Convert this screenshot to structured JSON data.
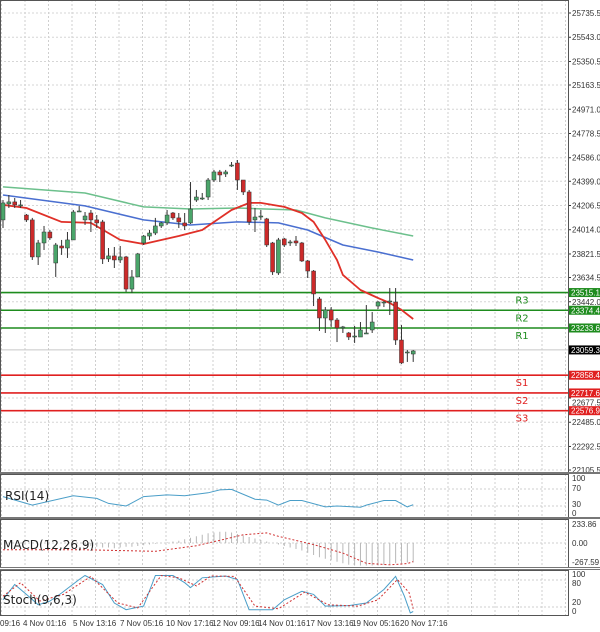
{
  "price_axis": {
    "ticks": [
      "25735.5",
      "25543.0",
      "25350.5",
      "25163.5",
      "24971.0",
      "24778.5",
      "24586.0",
      "24399.0",
      "24206.5",
      "24014.0",
      "23821.5",
      "23634.5",
      "23442.0",
      "22677.5",
      "22485.0",
      "22292.5",
      "22105.5"
    ],
    "current_price": "23059.3"
  },
  "levels": [
    {
      "label": "R3",
      "value": "23515.1",
      "color": "#1e8c1e"
    },
    {
      "label": "R2",
      "value": "23374.4",
      "color": "#1e8c1e"
    },
    {
      "label": "R1",
      "value": "23233.6",
      "color": "#1e8c1e"
    },
    {
      "label": "S1",
      "value": "22858.4",
      "color": "#e02020"
    },
    {
      "label": "S2",
      "value": "22717.6",
      "color": "#e02020"
    },
    {
      "label": "S3",
      "value": "22576.9",
      "color": "#e02020"
    }
  ],
  "colors": {
    "bull": "#4aa56a",
    "bear": "#cc2a2a",
    "ma_fast": "#e03028",
    "ma_mid": "#4a6fd0",
    "ma_slow": "#6cc08c",
    "indicator_line": "#4a9ec8",
    "signal": "#d03030"
  },
  "time_axis": [
    "09:16",
    "4 Nov 01:16",
    "5 Nov 13:16",
    "7 Nov 05:16",
    "10 Nov 17:16",
    "12 Nov 09:16",
    "14 Nov 01:16",
    "17 Nov 13:16",
    "19 Nov 05:16",
    "20 Nov 17:16"
  ],
  "chart_data": [
    {
      "type": "candlestick",
      "columns": [
        "open",
        "high",
        "low",
        "close"
      ],
      "candles": [
        [
          24092,
          24250,
          24028,
          24227
        ],
        [
          24219,
          24290,
          24187,
          24235
        ],
        [
          24235,
          24266,
          24187,
          24211
        ],
        [
          24211,
          24250,
          24187,
          24211
        ],
        [
          24131,
          24139,
          24076,
          24092
        ],
        [
          24092,
          24108,
          23774,
          23798
        ],
        [
          23798,
          23933,
          23734,
          23909
        ],
        [
          23909,
          24044,
          23853,
          23996
        ],
        [
          23996,
          24012,
          23933,
          23949
        ],
        [
          23750,
          23909,
          23639,
          23893
        ],
        [
          23885,
          23933,
          23814,
          23869
        ],
        [
          23869,
          23996,
          23790,
          23933
        ],
        [
          23933,
          24171,
          23933,
          24155
        ],
        [
          24163,
          24203,
          24155,
          24163
        ],
        [
          24092,
          24155,
          24052,
          24123
        ],
        [
          24147,
          24171,
          23996,
          24092
        ],
        [
          24092,
          24131,
          24028,
          24068
        ],
        [
          24076,
          24092,
          23742,
          23782
        ],
        [
          23782,
          23869,
          23758,
          23806
        ],
        [
          23806,
          23877,
          23710,
          23774
        ],
        [
          23774,
          23885,
          23750,
          23798
        ],
        [
          23798,
          23806,
          23520,
          23543
        ],
        [
          23543,
          23694,
          23512,
          23639
        ],
        [
          23639,
          23830,
          23639,
          23822
        ],
        [
          23909,
          23972,
          23893,
          23964
        ],
        [
          23964,
          24012,
          23933,
          23988
        ],
        [
          23988,
          24108,
          23972,
          24044
        ],
        [
          24044,
          24076,
          24028,
          24068
        ],
        [
          24068,
          24171,
          24052,
          24131
        ],
        [
          24147,
          24155,
          24092,
          24108
        ],
        [
          24108,
          24147,
          24028,
          24076
        ],
        [
          24068,
          24147,
          24012,
          24044
        ],
        [
          24068,
          24393,
          24060,
          24179
        ],
        [
          24250,
          24330,
          24235,
          24274
        ],
        [
          24258,
          24306,
          24250,
          24266
        ],
        [
          24274,
          24425,
          24250,
          24409
        ],
        [
          24409,
          24489,
          24393,
          24473
        ],
        [
          24473,
          24489,
          24393,
          24449
        ],
        [
          24457,
          24489,
          24433,
          24473
        ],
        [
          24528,
          24552,
          24513,
          24528
        ],
        [
          24544,
          24568,
          24330,
          24409
        ],
        [
          24409,
          24409,
          24290,
          24314
        ],
        [
          24314,
          24330,
          24052,
          24076
        ],
        [
          24092,
          24187,
          23996,
          24115
        ],
        [
          24123,
          24171,
          24092,
          24123
        ],
        [
          24100,
          24108,
          23877,
          23893
        ],
        [
          23909,
          23917,
          23655,
          23679
        ],
        [
          23671,
          23949,
          23655,
          23933
        ],
        [
          23941,
          23949,
          23877,
          23893
        ],
        [
          23917,
          23933,
          23885,
          23917
        ],
        [
          23925,
          23964,
          23885,
          23909
        ],
        [
          23909,
          23917,
          23758,
          23766
        ],
        [
          23766,
          23774,
          23631,
          23686
        ],
        [
          23686,
          23694,
          23408,
          23504
        ],
        [
          23464,
          23480,
          23210,
          23313
        ],
        [
          23313,
          23400,
          23194,
          23377
        ],
        [
          23377,
          23400,
          23242,
          23297
        ],
        [
          23297,
          23313,
          23122,
          23234
        ],
        [
          23242,
          23250,
          23194,
          23242
        ],
        [
          23194,
          23202,
          23138,
          23162
        ],
        [
          23170,
          23250,
          23115,
          23170
        ],
        [
          23162,
          23281,
          23162,
          23218
        ],
        [
          23194,
          23416,
          23194,
          23194
        ],
        [
          23218,
          23361,
          23194,
          23281
        ],
        [
          23408,
          23448,
          23385,
          23440
        ],
        [
          23440,
          23448,
          23400,
          23440
        ],
        [
          23448,
          23551,
          23337,
          23448
        ],
        [
          23440,
          23551,
          23099,
          23138
        ],
        [
          23138,
          23257,
          22948,
          22956
        ],
        [
          23043,
          23059,
          22964,
          23043
        ],
        [
          23027,
          23059,
          22964,
          23051
        ]
      ],
      "moving_averages": {
        "fast": [
          [
            0,
            24211
          ],
          [
            4,
            24187
          ],
          [
            10,
            24076
          ],
          [
            15,
            24068
          ],
          [
            20,
            23933
          ],
          [
            24,
            23901
          ],
          [
            30,
            23964
          ],
          [
            34,
            24012
          ],
          [
            39,
            24171
          ],
          [
            42,
            24227
          ],
          [
            44,
            24227
          ],
          [
            48,
            24195
          ],
          [
            51,
            24147
          ],
          [
            53,
            24076
          ],
          [
            55,
            23933
          ],
          [
            57,
            23774
          ],
          [
            58,
            23655
          ],
          [
            61,
            23535
          ],
          [
            64,
            23472
          ],
          [
            66,
            23432
          ],
          [
            68,
            23377
          ],
          [
            70,
            23305
          ]
        ],
        "mid": [
          [
            0,
            24290
          ],
          [
            14,
            24203
          ],
          [
            24,
            24092
          ],
          [
            32,
            24052
          ],
          [
            40,
            24076
          ],
          [
            47,
            24068
          ],
          [
            52,
            24012
          ],
          [
            58,
            23893
          ],
          [
            64,
            23837
          ],
          [
            70,
            23774
          ]
        ],
        "slow": [
          [
            0,
            24354
          ],
          [
            14,
            24306
          ],
          [
            24,
            24195
          ],
          [
            32,
            24179
          ],
          [
            40,
            24187
          ],
          [
            50,
            24171
          ],
          [
            55,
            24108
          ],
          [
            63,
            24028
          ],
          [
            70,
            23964
          ]
        ]
      },
      "ylim": [
        22105.5,
        25735.5
      ]
    },
    {
      "type": "line",
      "title": "RSI(14)",
      "ticks": [
        "100",
        "70",
        "30",
        "0"
      ],
      "points": [
        [
          0,
          52
        ],
        [
          5,
          32
        ],
        [
          12,
          54
        ],
        [
          16,
          48
        ],
        [
          18,
          36
        ],
        [
          21,
          30
        ],
        [
          24,
          52
        ],
        [
          28,
          56
        ],
        [
          31,
          54
        ],
        [
          35,
          61
        ],
        [
          37,
          68
        ],
        [
          39,
          69
        ],
        [
          43,
          46
        ],
        [
          45,
          44
        ],
        [
          47,
          32
        ],
        [
          49,
          43
        ],
        [
          51,
          43
        ],
        [
          55,
          28
        ],
        [
          57,
          30
        ],
        [
          61,
          27
        ],
        [
          62,
          32
        ],
        [
          65,
          43
        ],
        [
          67,
          43
        ],
        [
          69,
          28
        ],
        [
          70,
          33
        ]
      ]
    },
    {
      "type": "bar+line",
      "title": "MACD(12,26,9)",
      "ticks": [
        "233.86",
        "0.00",
        "-267.59"
      ],
      "histogram": [
        0,
        0,
        0,
        0,
        0,
        0,
        0,
        0,
        0,
        0,
        0,
        0,
        0,
        0,
        -30,
        -40,
        -50,
        -60,
        -60,
        -70,
        -60,
        -50,
        -50,
        -40,
        -30,
        -20,
        -10,
        0,
        10,
        20,
        30,
        50,
        70,
        90,
        110,
        130,
        140,
        150,
        150,
        140,
        120,
        100,
        80,
        60,
        40,
        20,
        0,
        -20,
        -40,
        -60,
        -80,
        -100,
        -130,
        -160,
        -190,
        -210,
        -230,
        -250,
        -270,
        -290,
        -300,
        -300,
        -300,
        -300,
        -300,
        -290,
        -280,
        -270,
        -270,
        -260,
        -260
      ],
      "signal": [
        [
          0,
          -90
        ],
        [
          14,
          -90
        ],
        [
          26,
          -110
        ],
        [
          33,
          -36
        ],
        [
          37,
          36
        ],
        [
          41,
          110
        ],
        [
          45,
          135
        ],
        [
          47,
          90
        ],
        [
          53,
          -22
        ],
        [
          58,
          -135
        ],
        [
          62,
          -270
        ],
        [
          66,
          -290
        ],
        [
          69,
          -275
        ],
        [
          70,
          -248
        ]
      ]
    },
    {
      "type": "line",
      "title": "Stoch(9,6,3)",
      "ticks": [
        "100",
        "80",
        "20",
        "0"
      ],
      "main": [
        [
          0,
          36
        ],
        [
          2,
          70
        ],
        [
          4,
          48
        ],
        [
          6,
          25
        ],
        [
          8,
          33
        ],
        [
          10,
          51
        ],
        [
          13,
          81
        ],
        [
          14,
          90
        ],
        [
          17,
          70
        ],
        [
          19,
          29
        ],
        [
          21,
          14
        ],
        [
          24,
          22
        ],
        [
          26,
          90
        ],
        [
          29,
          90
        ],
        [
          31,
          74
        ],
        [
          32,
          63
        ],
        [
          34,
          85
        ],
        [
          38,
          89
        ],
        [
          40,
          81
        ],
        [
          42,
          14
        ],
        [
          46,
          14
        ],
        [
          48,
          36
        ],
        [
          51,
          55
        ],
        [
          53,
          48
        ],
        [
          55,
          22
        ],
        [
          59,
          23
        ],
        [
          62,
          29
        ],
        [
          65,
          59
        ],
        [
          67,
          88
        ],
        [
          68.5,
          44
        ],
        [
          69.5,
          7
        ],
        [
          70,
          10
        ]
      ],
      "signal": [
        [
          0,
          44
        ],
        [
          3,
          74
        ],
        [
          6.3,
          33
        ],
        [
          10.3,
          48
        ],
        [
          15,
          88
        ],
        [
          19.6,
          29
        ],
        [
          23,
          18
        ],
        [
          27,
          90
        ],
        [
          30,
          85
        ],
        [
          33,
          67
        ],
        [
          35.5,
          89
        ],
        [
          39.5,
          88
        ],
        [
          43,
          22
        ],
        [
          47,
          16
        ],
        [
          51.5,
          53
        ],
        [
          55.5,
          25
        ],
        [
          60.6,
          22
        ],
        [
          64,
          36
        ],
        [
          67.3,
          81
        ],
        [
          69.3,
          52
        ],
        [
          70,
          16
        ]
      ]
    }
  ]
}
